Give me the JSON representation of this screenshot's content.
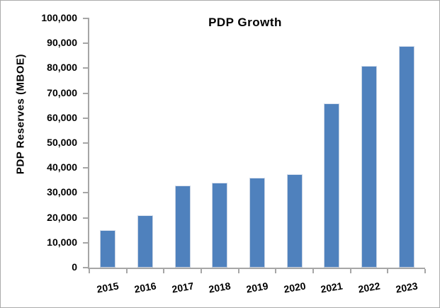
{
  "chart_data": {
    "type": "bar",
    "title": "PDP Growth",
    "ylabel": "PDP Reserves (MBOE)",
    "xlabel": "",
    "categories": [
      "2015",
      "2016",
      "2017",
      "2018",
      "2019",
      "2020",
      "2021",
      "2022",
      "2023"
    ],
    "values": [
      15000,
      21000,
      33000,
      34000,
      36000,
      37500,
      66000,
      81000,
      89000
    ],
    "ylim": [
      0,
      100000
    ],
    "ytick_step": 10000,
    "ytick_labels": [
      "0",
      "10,000",
      "20,000",
      "30,000",
      "40,000",
      "50,000",
      "60,000",
      "70,000",
      "80,000",
      "90,000",
      "100,000"
    ],
    "grid": false,
    "legend": false,
    "bar_series_name": "PDP Reserves"
  },
  "colors": {
    "bar_fill": "#4f81bd",
    "bar_border": "#c8d3e3",
    "axis": "#a6a6a6",
    "text": "#000000",
    "background": "#ffffff",
    "frame_border": "#ababab"
  }
}
